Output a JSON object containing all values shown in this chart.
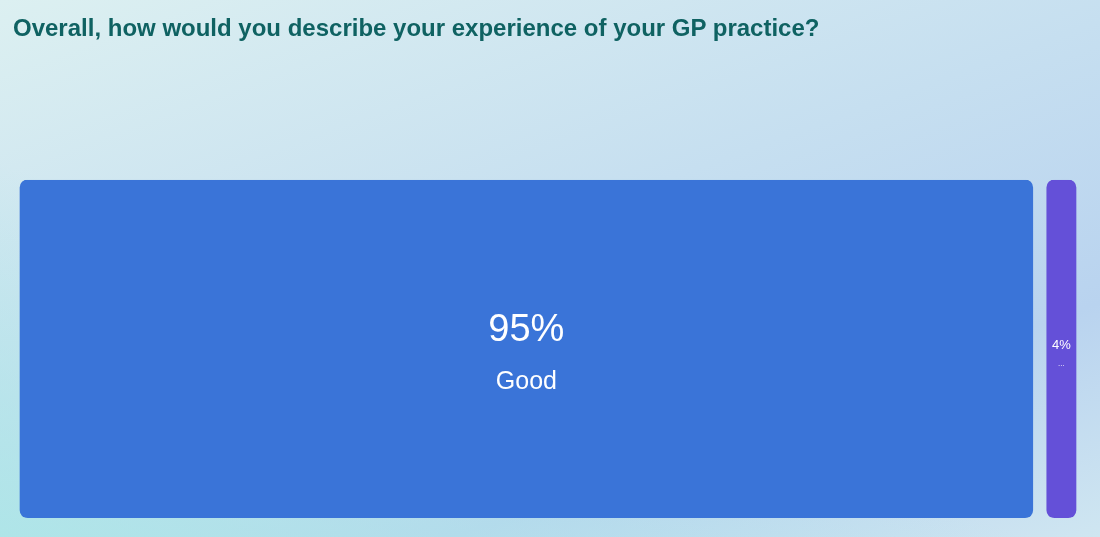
{
  "chart_data": {
    "type": "other",
    "title": "Overall, how would you describe your experience of your GP practice?",
    "categories": [
      "Good",
      "..."
    ],
    "values": [
      95,
      4
    ],
    "value_labels": [
      "95%",
      "4%"
    ],
    "colors": [
      "#3a74d8",
      "#6450d8"
    ]
  }
}
